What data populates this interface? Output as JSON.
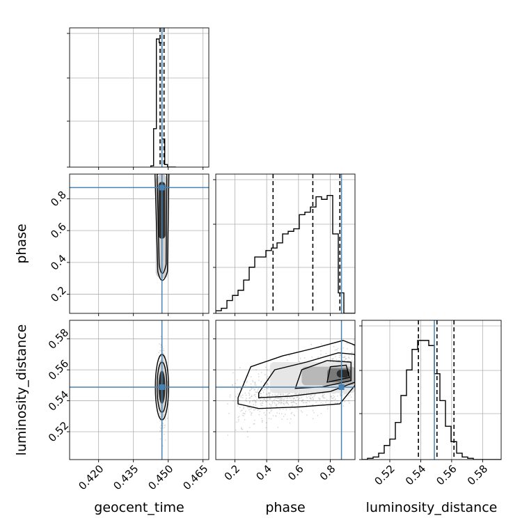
{
  "chart_data": {
    "type": "corner",
    "parameters": [
      "geocent_time",
      "phase",
      "luminosity_distance"
    ],
    "truths": {
      "geocent_time": 0.4473,
      "phase": 0.87,
      "luminosity_distance": 0.5488
    },
    "quantile_lines": {
      "geocent_time": [
        0.4465,
        0.4473,
        0.4482
      ],
      "phase": [
        0.44,
        0.69,
        0.86
      ],
      "luminosity_distance": [
        0.5385,
        0.5505,
        0.5615
      ]
    },
    "medians": {
      "geocent_time": 0.4473,
      "phase": 0.69,
      "luminosity_distance": 0.5505
    },
    "ranges": {
      "geocent_time": [
        0.4075,
        0.4675
      ],
      "phase": [
        0.08,
        0.955
      ],
      "luminosity_distance": [
        0.502,
        0.592
      ]
    },
    "ticks": {
      "geocent_time": {
        "values": [
          0.42,
          0.435,
          0.45,
          0.465
        ],
        "labels": [
          "0.420",
          "0.435",
          "0.450",
          "0.465"
        ]
      },
      "phase": {
        "values": [
          0.2,
          0.4,
          0.6,
          0.8
        ],
        "labels": [
          "0.2",
          "0.4",
          "0.6",
          "0.8"
        ]
      },
      "luminosity_distance": {
        "values": [
          0.52,
          0.54,
          0.56,
          0.58
        ],
        "labels": [
          "0.52",
          "0.54",
          "0.56",
          "0.58"
        ]
      }
    },
    "histograms": {
      "geocent_time": {
        "edges": [
          0.4425,
          0.4437,
          0.4449,
          0.4461,
          0.4473,
          0.4485,
          0.4497,
          0.4509,
          0.4521,
          0.4533
        ],
        "counts": [
          0.01,
          0.3,
          1.0,
          0.97,
          0.22,
          0.02,
          0.0,
          0.0,
          0.0
        ]
      },
      "phase": {
        "bin_width": 0.035,
        "start": 0.08,
        "counts": [
          0.02,
          0.04,
          0.1,
          0.14,
          0.18,
          0.26,
          0.36,
          0.44,
          0.44,
          0.49,
          0.51,
          0.55,
          0.62,
          0.64,
          0.66,
          0.77,
          0.79,
          0.83,
          0.91,
          0.89,
          0.92,
          0.62,
          0.16,
          0.0,
          0.0
        ]
      },
      "luminosity_distance": {
        "bin_width": 0.0036,
        "start": 0.502,
        "counts": [
          0.0,
          0.01,
          0.02,
          0.05,
          0.11,
          0.16,
          0.29,
          0.5,
          0.7,
          0.86,
          0.93,
          0.93,
          0.89,
          0.67,
          0.46,
          0.26,
          0.14,
          0.05,
          0.02,
          0.01,
          0.0,
          0.0,
          0.0,
          0.0,
          0.0
        ]
      }
    },
    "grid": true
  },
  "colors": {
    "truth": "#4682b4",
    "hist": "#000000",
    "grid": "#b0b0b0",
    "density_dark": "#333333"
  }
}
